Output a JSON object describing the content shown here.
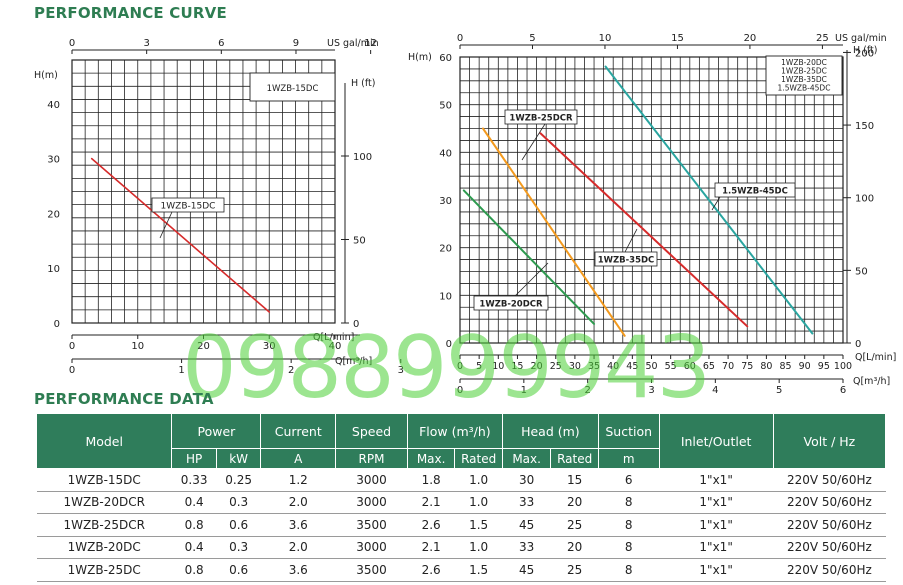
{
  "titles": {
    "curve": "PERFORMANCE CURVE",
    "data": "PERFORMANCE DATA"
  },
  "watermark": "0988999943",
  "colors": {
    "accent": "#2e7d52",
    "table_header": "#2f7d5b",
    "watermark": "#4cd137"
  },
  "chart_data": [
    {
      "type": "line",
      "axes": {
        "y_left_label": "H(m)",
        "y_left_ticks": [
          "0",
          "10",
          "20",
          "30",
          "40"
        ],
        "y_left_range": [
          0,
          48
        ],
        "y_right_label": "H (ft)",
        "y_right_ticks": [
          "0",
          "50",
          "100"
        ],
        "x_bottom_label": "Q[L/min]",
        "x_bottom_ticks": [
          "0",
          "10",
          "20",
          "30",
          "40"
        ],
        "x_bottom_range": [
          0,
          40
        ],
        "x_top_label": "US gal/min",
        "x_top_ticks": [
          "0",
          "3",
          "6",
          "9",
          "12"
        ],
        "x_m3_label": "Q[m³/h]",
        "x_m3_ticks": [
          "0",
          "1",
          "2",
          "3"
        ]
      },
      "grid": true,
      "legend": [
        "1WZB-15DC"
      ],
      "series": [
        {
          "name": "1WZB-15DC",
          "color": "#d62b2b",
          "points": [
            [
              3,
              30
            ],
            [
              30,
              2
            ]
          ]
        }
      ],
      "annotations": [
        "1WZB-15DC"
      ]
    },
    {
      "type": "line",
      "axes": {
        "y_left_label": "H(m)",
        "y_left_ticks": [
          "0",
          "10",
          "20",
          "30",
          "40",
          "50",
          "60"
        ],
        "y_left_range": [
          0,
          60
        ],
        "y_right_label": "H (ft)",
        "y_right_ticks": [
          "0",
          "50",
          "100",
          "150",
          "200"
        ],
        "x_bottom_label": "Q[L/min]",
        "x_bottom_ticks": [
          "0",
          "5",
          "10",
          "15",
          "20",
          "25",
          "30",
          "35",
          "40",
          "45",
          "50",
          "55",
          "60",
          "65",
          "70",
          "75",
          "80",
          "85",
          "90",
          "95",
          "100"
        ],
        "x_bottom_range": [
          0,
          100
        ],
        "x_top_label": "US gal/min",
        "x_top_ticks": [
          "0",
          "5",
          "10",
          "15",
          "20",
          "25"
        ],
        "x_m3_label": "Q[m³/h]",
        "x_m3_ticks": [
          "0",
          "1",
          "2",
          "3",
          "4",
          "5",
          "6"
        ]
      },
      "grid": true,
      "legend": [
        "1WZB-20DC",
        "1WZB-25DC",
        "1WZB-35DC",
        "1.5WZB-45DC"
      ],
      "series": [
        {
          "name": "1WZB-20DCR",
          "color": "#2e9a4f",
          "points": [
            [
              1,
              32
            ],
            [
              35,
              4
            ]
          ]
        },
        {
          "name": "1WZB-25DCR",
          "color": "#f39a1e",
          "points": [
            [
              6,
              45
            ],
            [
              43,
              1.5
            ]
          ]
        },
        {
          "name": "1WZB-35DC",
          "color": "#d62b2b",
          "points": [
            [
              21,
              44
            ],
            [
              75,
              3.5
            ]
          ]
        },
        {
          "name": "1.5WZB-45DC",
          "color": "#2aa5a0",
          "points": [
            [
              38,
              58
            ],
            [
              92,
              2
            ]
          ]
        }
      ],
      "annotations": [
        "1WZB-25DCR",
        "1WZB-20DCR",
        "1WZB-35DC",
        "1.5WZB-45DC"
      ]
    }
  ],
  "table": {
    "group_headers": [
      "Model",
      "Power",
      "Current",
      "Speed",
      "Flow (m³/h)",
      "Head (m)",
      "Suction",
      "Inlet/Outlet",
      "Volt / Hz"
    ],
    "sub_headers": [
      "HP",
      "kW",
      "A",
      "RPM",
      "Max.",
      "Rated",
      "Max.",
      "Rated",
      "m"
    ],
    "rows": [
      [
        "1WZB-15DC",
        "0.33",
        "0.25",
        "1.2",
        "3000",
        "1.8",
        "1.0",
        "30",
        "15",
        "6",
        "1\"x1\"",
        "220V 50/60Hz"
      ],
      [
        "1WZB-20DCR",
        "0.4",
        "0.3",
        "2.0",
        "3000",
        "2.1",
        "1.0",
        "33",
        "20",
        "8",
        "1\"x1\"",
        "220V 50/60Hz"
      ],
      [
        "1WZB-25DCR",
        "0.8",
        "0.6",
        "3.6",
        "3500",
        "2.6",
        "1.5",
        "45",
        "25",
        "8",
        "1\"x1\"",
        "220V 50/60Hz"
      ],
      [
        "1WZB-20DC",
        "0.4",
        "0.3",
        "2.0",
        "3000",
        "2.1",
        "1.0",
        "33",
        "20",
        "8",
        "1\"x1\"",
        "220V 50/60Hz"
      ],
      [
        "1WZB-25DC",
        "0.8",
        "0.6",
        "3.6",
        "3500",
        "2.6",
        "1.5",
        "45",
        "25",
        "8",
        "1\"x1\"",
        "220V 50/60Hz"
      ]
    ]
  }
}
